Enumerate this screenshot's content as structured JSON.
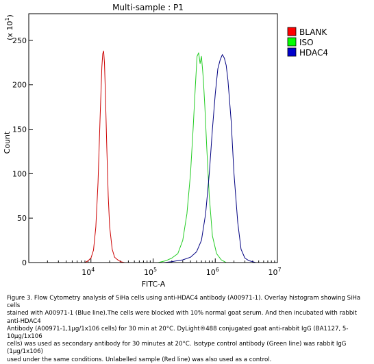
{
  "chart_data": {
    "type": "line",
    "title": "Multi-sample : P1",
    "xlabel": "FITC-A",
    "ylabel": "Count",
    "y_multiplier": "(x 10",
    "y_multiplier_exp": "1",
    "y_multiplier_close": ")",
    "x_scale": "log",
    "xlim": [
      1000,
      10000000
    ],
    "ylim": [
      0,
      280
    ],
    "y_ticks": [
      0,
      50,
      100,
      150,
      200,
      250
    ],
    "x_ticks": [
      {
        "value": 10000,
        "base": "10",
        "exp": "4"
      },
      {
        "value": 100000,
        "base": "10",
        "exp": "5"
      },
      {
        "value": 1000000,
        "base": "10",
        "exp": "6"
      },
      {
        "value": 10000000,
        "base": "10",
        "exp": "7"
      }
    ],
    "legend_position": "top-right",
    "series": [
      {
        "name": "BLANK",
        "color": "#cc0000",
        "swatch": "#ff0000",
        "x": [
          8000,
          9000,
          10000,
          11000,
          12000,
          13000,
          14000,
          15000,
          15500,
          16000,
          16500,
          17000,
          18000,
          19000,
          20000,
          22000,
          24000,
          27000,
          30000,
          35000
        ],
        "y": [
          0,
          2,
          5,
          14,
          40,
          90,
          160,
          220,
          235,
          238,
          225,
          195,
          130,
          75,
          40,
          15,
          6,
          3,
          1,
          0
        ]
      },
      {
        "name": "ISO",
        "color": "#22cc22",
        "swatch": "#00ff00",
        "x": [
          120000,
          160000,
          200000,
          250000,
          300000,
          350000,
          400000,
          440000,
          480000,
          510000,
          540000,
          570000,
          600000,
          640000,
          680000,
          730000,
          800000,
          900000,
          1050000,
          1250000,
          1500000
        ],
        "y": [
          0,
          2,
          5,
          10,
          25,
          55,
          100,
          150,
          200,
          232,
          236,
          224,
          232,
          208,
          175,
          130,
          75,
          30,
          10,
          3,
          0
        ]
      },
      {
        "name": "HDAC4",
        "color": "#000080",
        "swatch": "#0000cc",
        "x": [
          150000,
          200000,
          300000,
          400000,
          500000,
          600000,
          700000,
          800000,
          900000,
          1000000,
          1100000,
          1200000,
          1300000,
          1400000,
          1500000,
          1600000,
          1800000,
          2000000,
          2300000,
          2600000,
          3000000,
          3500000,
          4000000,
          4500000
        ],
        "y": [
          0,
          1,
          3,
          6,
          12,
          25,
          55,
          100,
          150,
          190,
          218,
          228,
          234,
          230,
          222,
          205,
          160,
          100,
          45,
          15,
          5,
          2,
          1,
          0
        ]
      }
    ]
  },
  "caption_lines": [
    "Figure 3. Flow Cytometry analysis of SiHa cells using anti-HDAC4 antibody (A00971-1).  Overlay histogram showing SiHa cells",
    "stained with A00971-1 (Blue line).The cells were blocked with 10% normal goat serum. And then incubated with rabbit anti-HDAC4",
    "Antibody (A00971-1,1µg/1x106 cells) for 30 min at 20°C. DyLight®488 conjugated goat anti-rabbit IgG (BA1127, 5-10µg/1x106",
    "cells) was used as secondary antibody for 30 minutes at 20°C. Isotype control antibody (Green line) was rabbit IgG (1µg/1x106)",
    "used under the same conditions. Unlabelled sample (Red line) was also used as a control."
  ]
}
